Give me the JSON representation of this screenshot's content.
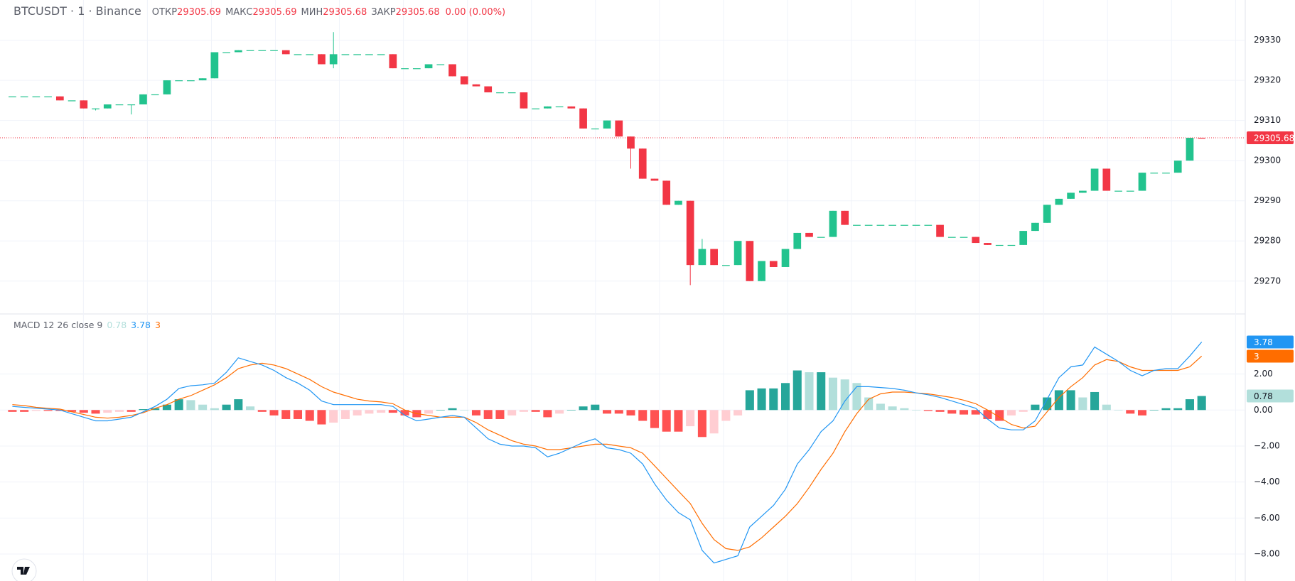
{
  "chart_data": [
    {
      "type": "candlestick",
      "title": "BTCUSDT · 1 · Binance",
      "labels": {
        "open": "ОТКР",
        "high": "МАКС",
        "low": "МИН",
        "close": "ЗАКР"
      },
      "change": "0.00 (0.00%)",
      "open": [
        29316,
        29316,
        29316,
        29316,
        29316,
        29315,
        29315,
        29313,
        29313,
        29314,
        29314,
        29314,
        29316.5,
        29316.5,
        29320,
        29320,
        29320,
        29320.5,
        29327,
        29327,
        29327.5,
        29327.5,
        29327.5,
        29327.5,
        29326.5,
        29326.5,
        29326.5,
        29324,
        29326.5,
        29326.5,
        29326.5,
        29326.5,
        29326.5,
        29323,
        29323,
        29323,
        29324,
        29324,
        29321,
        29319,
        29318.5,
        29317,
        29317,
        29317,
        29313,
        29313,
        29313.5,
        29313.5,
        29313,
        29308,
        29308,
        29310,
        29306,
        29303,
        29295.5,
        29295,
        29289,
        29290,
        29274,
        29278,
        29274,
        29274,
        29280,
        29270,
        29275,
        29273.5,
        29278,
        29282,
        29281,
        29281,
        29287.5,
        29284,
        29284,
        29284,
        29284,
        29284,
        29284,
        29284,
        29284,
        29281,
        29281,
        29281,
        29279.5,
        29279,
        29279,
        29279,
        29282.5,
        29284.5,
        29289,
        29290.5,
        29292,
        29292.5,
        29298,
        29292.5,
        29292.5,
        29292.5,
        29297,
        29297,
        29297,
        29300,
        29305.69
      ],
      "high": [
        29316,
        29316,
        29316,
        29316,
        29316,
        29315,
        29315,
        29313,
        29314,
        29314,
        29314,
        29316.5,
        29316.5,
        29320,
        29320,
        29320,
        29320.5,
        29327,
        29327,
        29327.5,
        29327.5,
        29327.5,
        29327.5,
        29327.5,
        29326.5,
        29326.5,
        29326.5,
        29332,
        29326.5,
        29326.5,
        29326.5,
        29326.5,
        29326.5,
        29323,
        29323,
        29324,
        29324,
        29324,
        29321,
        29319,
        29318.5,
        29317,
        29317,
        29317,
        29313,
        29313.5,
        29313.5,
        29313.5,
        29313,
        29308,
        29310,
        29310,
        29306,
        29303,
        29295.5,
        29295,
        29290,
        29290,
        29280.5,
        29278,
        29274,
        29280,
        29280,
        29275,
        29275,
        29278,
        29282,
        29282,
        29281,
        29287.5,
        29287.5,
        29284,
        29284,
        29284,
        29284,
        29284,
        29284,
        29284,
        29284,
        29281,
        29281,
        29281,
        29279.5,
        29279,
        29279,
        29282.5,
        29284.5,
        29289,
        29290.5,
        29292,
        29292.5,
        29298,
        29298,
        29292.5,
        29292.5,
        29297,
        29297,
        29297,
        29300,
        29305.68,
        29305.69
      ],
      "low": [
        29316,
        29316,
        29316,
        29316,
        29315,
        29315,
        29313,
        29312.5,
        29313,
        29314,
        29311.5,
        29314,
        29316.5,
        29316.5,
        29320,
        29320,
        29320,
        29320.5,
        29327,
        29327,
        29327.5,
        29327.5,
        29327.5,
        29326.5,
        29326.5,
        29326.5,
        29324,
        29323,
        29326.5,
        29326.5,
        29326.5,
        29326.5,
        29323,
        29323,
        29323,
        29323,
        29324,
        29321,
        29319,
        29318.5,
        29317,
        29317,
        29317,
        29313,
        29313,
        29313,
        29313.5,
        29313,
        29308,
        29308,
        29308,
        29306,
        29298,
        29295.5,
        29295,
        29289,
        29289,
        29269,
        29274,
        29274,
        29274,
        29274,
        29270,
        29270,
        29273.5,
        29273.5,
        29278,
        29281,
        29281,
        29281,
        29284,
        29284,
        29284,
        29284,
        29284,
        29284,
        29284,
        29284,
        29281,
        29281,
        29281,
        29279.5,
        29279,
        29279,
        29279,
        29279,
        29282.5,
        29284.5,
        29289,
        29290.5,
        29292,
        29292.5,
        29292.5,
        29292.5,
        29292.5,
        29292.5,
        29297,
        29297,
        29297,
        29300,
        29305.68
      ],
      "close": [
        29316,
        29316,
        29316,
        29316,
        29315,
        29315,
        29313,
        29313,
        29314,
        29314,
        29314,
        29316.5,
        29316.5,
        29320,
        29320,
        29320,
        29320.5,
        29327,
        29327,
        29327.5,
        29327.5,
        29327.5,
        29327.5,
        29326.5,
        29326.5,
        29326.5,
        29324,
        29326.5,
        29326.5,
        29326.5,
        29326.5,
        29326.5,
        29323,
        29323,
        29323,
        29324,
        29324,
        29321,
        29319,
        29318.5,
        29317,
        29317,
        29317,
        29313,
        29313,
        29313.5,
        29313.5,
        29313,
        29308,
        29308,
        29310,
        29306,
        29303,
        29295.5,
        29295,
        29289,
        29290,
        29274,
        29278,
        29274,
        29274,
        29280,
        29270,
        29275,
        29273.5,
        29278,
        29282,
        29281,
        29281,
        29287.5,
        29284,
        29284,
        29284,
        29284,
        29284,
        29284,
        29284,
        29284,
        29281,
        29281,
        29281,
        29279.5,
        29279,
        29279,
        29279,
        29282.5,
        29284.5,
        29289,
        29290.5,
        29292,
        29292.5,
        29298,
        29292.5,
        29292.5,
        29292.5,
        29297,
        29297,
        29297,
        29300,
        29305.68,
        29305.68
      ],
      "up_color": "#22c38e",
      "down_color": "#f23645",
      "ylim": [
        29262,
        29340
      ],
      "yticks": [
        29270,
        29280,
        29290,
        29300,
        29310,
        29320,
        29330
      ],
      "grid": true,
      "last_price_line": true
    },
    {
      "type": "macd",
      "title": "MACD 12 26 close 9",
      "histogram": {
        "values": [
          -0.1,
          -0.1,
          -0.05,
          -0.05,
          -0.05,
          -0.1,
          -0.15,
          -0.2,
          -0.15,
          -0.1,
          -0.1,
          0.05,
          0.1,
          0.3,
          0.6,
          0.55,
          0.3,
          0.1,
          0.3,
          0.6,
          0.2,
          -0.1,
          -0.3,
          -0.5,
          -0.5,
          -0.6,
          -0.8,
          -0.7,
          -0.5,
          -0.3,
          -0.2,
          -0.15,
          -0.15,
          -0.3,
          -0.4,
          -0.2,
          0,
          0.1,
          0,
          -0.3,
          -0.5,
          -0.5,
          -0.3,
          -0.1,
          -0.1,
          -0.4,
          -0.2,
          0,
          0.2,
          0.3,
          -0.2,
          -0.2,
          -0.3,
          -0.6,
          -1.0,
          -1.2,
          -1.2,
          -0.9,
          -1.5,
          -1.3,
          -0.6,
          -0.3,
          1.1,
          1.2,
          1.2,
          1.5,
          2.2,
          2.1,
          2.1,
          1.8,
          1.7,
          1.5,
          0.7,
          0.35,
          0.2,
          0.1,
          0,
          -0.05,
          -0.1,
          -0.2,
          -0.25,
          -0.25,
          -0.5,
          -0.6,
          -0.3,
          -0.1,
          0.3,
          0.7,
          1.1,
          1.1,
          0.7,
          1.0,
          0.3,
          0,
          -0.2,
          -0.3,
          0,
          0.1,
          0.1,
          0.6,
          0.78
        ],
        "colors": {
          "up_strong": "#26a69a",
          "up_weak": "#b2dfdb",
          "down_strong": "#ff5252",
          "down_weak": "#ffcdd2"
        }
      },
      "macd": {
        "color": "#2196f3",
        "values": [
          0.2,
          0.15,
          0.1,
          0.05,
          0,
          -0.2,
          -0.4,
          -0.6,
          -0.6,
          -0.5,
          -0.4,
          -0.1,
          0.2,
          0.6,
          1.2,
          1.35,
          1.4,
          1.5,
          2.1,
          2.9,
          2.7,
          2.5,
          2.2,
          1.8,
          1.5,
          1.1,
          0.5,
          0.3,
          0.3,
          0.3,
          0.3,
          0.3,
          0.2,
          -0.3,
          -0.6,
          -0.5,
          -0.4,
          -0.3,
          -0.4,
          -1.0,
          -1.6,
          -1.9,
          -2.0,
          -2.0,
          -2.1,
          -2.6,
          -2.4,
          -2.1,
          -1.8,
          -1.6,
          -2.1,
          -2.2,
          -2.4,
          -3.0,
          -4.1,
          -5.0,
          -5.7,
          -6.1,
          -7.8,
          -8.5,
          -8.3,
          -8.1,
          -6.5,
          -5.9,
          -5.3,
          -4.4,
          -3.0,
          -2.2,
          -1.2,
          -0.6,
          0.5,
          1.3,
          1.3,
          1.25,
          1.2,
          1.1,
          0.95,
          0.85,
          0.7,
          0.5,
          0.3,
          0.1,
          -0.5,
          -1.0,
          -1.1,
          -1.1,
          -0.6,
          0.6,
          1.8,
          2.4,
          2.5,
          3.5,
          3.1,
          2.7,
          2.2,
          1.9,
          2.2,
          2.3,
          2.3,
          3.0,
          3.78
        ]
      },
      "signal": {
        "color": "#ff6d00",
        "values": [
          0.3,
          0.25,
          0.15,
          0.1,
          0.05,
          -0.1,
          -0.25,
          -0.4,
          -0.45,
          -0.4,
          -0.3,
          -0.15,
          0.1,
          0.3,
          0.6,
          0.8,
          1.1,
          1.4,
          1.8,
          2.3,
          2.5,
          2.6,
          2.5,
          2.3,
          2.0,
          1.7,
          1.3,
          1.0,
          0.8,
          0.6,
          0.5,
          0.45,
          0.35,
          0,
          -0.2,
          -0.3,
          -0.4,
          -0.4,
          -0.4,
          -0.7,
          -1.1,
          -1.4,
          -1.7,
          -1.9,
          -2.0,
          -2.2,
          -2.2,
          -2.1,
          -2.0,
          -1.9,
          -1.9,
          -2.0,
          -2.1,
          -2.4,
          -3.1,
          -3.8,
          -4.5,
          -5.2,
          -6.3,
          -7.2,
          -7.7,
          -7.8,
          -7.6,
          -7.1,
          -6.5,
          -5.9,
          -5.2,
          -4.3,
          -3.3,
          -2.4,
          -1.2,
          -0.2,
          0.6,
          0.9,
          1.0,
          1.0,
          0.95,
          0.9,
          0.8,
          0.7,
          0.55,
          0.35,
          0,
          -0.4,
          -0.8,
          -1.0,
          -0.9,
          -0.1,
          0.7,
          1.3,
          1.8,
          2.5,
          2.8,
          2.7,
          2.4,
          2.2,
          2.2,
          2.2,
          2.2,
          2.4,
          3.0
        ]
      },
      "ylim": [
        -9.5,
        5.3
      ],
      "yticks": [
        {
          "value": -8,
          "label": "−8.00"
        },
        {
          "value": -6,
          "label": "−6.00"
        },
        {
          "value": -4,
          "label": "−4.00"
        },
        {
          "value": -2,
          "label": "−2.00"
        },
        {
          "value": 0,
          "label": "0.00"
        },
        {
          "value": 2,
          "label": "2.00"
        }
      ],
      "grid": true
    }
  ]
}
